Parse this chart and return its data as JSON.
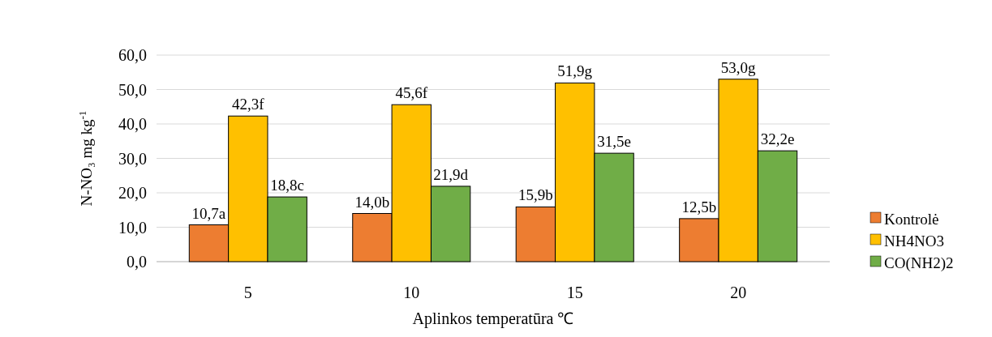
{
  "chart_data": {
    "type": "bar",
    "xlabel": "Aplinkos temperatūra ℃",
    "ylabel": "N-NO₃  mg kg$^{-1}$",
    "categories": [
      "5",
      "10",
      "15",
      "20"
    ],
    "series": [
      {
        "name": "Kontrolė",
        "color": "#ed7d31",
        "values": [
          10.7,
          14.0,
          15.9,
          12.5
        ],
        "value_labels": [
          "10,7a",
          "14,0b",
          "15,9b",
          "12,5b"
        ]
      },
      {
        "name": "NH4NO3",
        "color": "#ffc000",
        "values": [
          42.3,
          45.6,
          51.9,
          53.0
        ],
        "value_labels": [
          "42,3f",
          "45,6f",
          "51,9g",
          "53,0g"
        ]
      },
      {
        "name": "CO(NH2)2",
        "color": "#70ad47",
        "values": [
          18.8,
          21.9,
          31.5,
          32.2
        ],
        "value_labels": [
          "18,8c",
          "21,9d",
          "31,5e",
          "32,2e"
        ]
      }
    ],
    "ylim": [
      0,
      60
    ],
    "yticks": [
      {
        "value": 0,
        "label": "0,0"
      },
      {
        "value": 10,
        "label": "10,0"
      },
      {
        "value": 20,
        "label": "20,0"
      },
      {
        "value": 30,
        "label": "30,0"
      },
      {
        "value": 40,
        "label": "40,0"
      },
      {
        "value": 50,
        "label": "50,0"
      },
      {
        "value": 60,
        "label": "60,0"
      }
    ],
    "grid": "y",
    "legend": "right"
  }
}
